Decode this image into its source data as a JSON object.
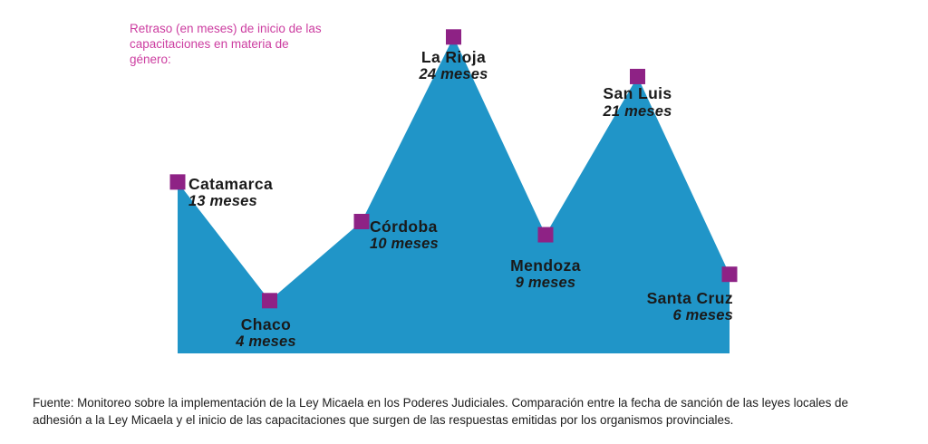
{
  "chart_data": {
    "type": "area",
    "title": "Retraso (en meses) de inicio de las capacitaciones en materia de género:",
    "unit": "meses",
    "categories": [
      "Catamarca",
      "Chaco",
      "Córdoba",
      "La Rioja",
      "Mendoza",
      "San Luis",
      "Santa Cruz"
    ],
    "values": [
      13,
      4,
      10,
      24,
      9,
      21,
      6
    ],
    "points": [
      {
        "name": "Catamarca",
        "value": 13,
        "label": "13 meses"
      },
      {
        "name": "Chaco",
        "value": 4,
        "label": "4 meses"
      },
      {
        "name": "Córdoba",
        "value": 10,
        "label": "10 meses"
      },
      {
        "name": "La Rioja",
        "value": 24,
        "label": "24 meses"
      },
      {
        "name": "Mendoza",
        "value": 9,
        "label": "9 meses"
      },
      {
        "name": "San Luis",
        "value": 21,
        "label": "21 meses"
      },
      {
        "name": "Santa Cruz",
        "value": 6,
        "label": "6 meses"
      }
    ],
    "ylim": [
      0,
      24
    ],
    "grid": false,
    "legend": "none",
    "colors": {
      "area": "#2095c8",
      "marker": "#8e2285",
      "title": "#cc3da0",
      "label": "#1a1a1a"
    }
  },
  "source": "Fuente: Monitoreo sobre la implementación de la Ley Micaela en los Poderes Judiciales. Comparación entre la fecha de sanción de las leyes locales de adhesión a la Ley Micaela y el inicio de las capacitaciones que surgen de las respuestas emitidas por los organismos provinciales."
}
